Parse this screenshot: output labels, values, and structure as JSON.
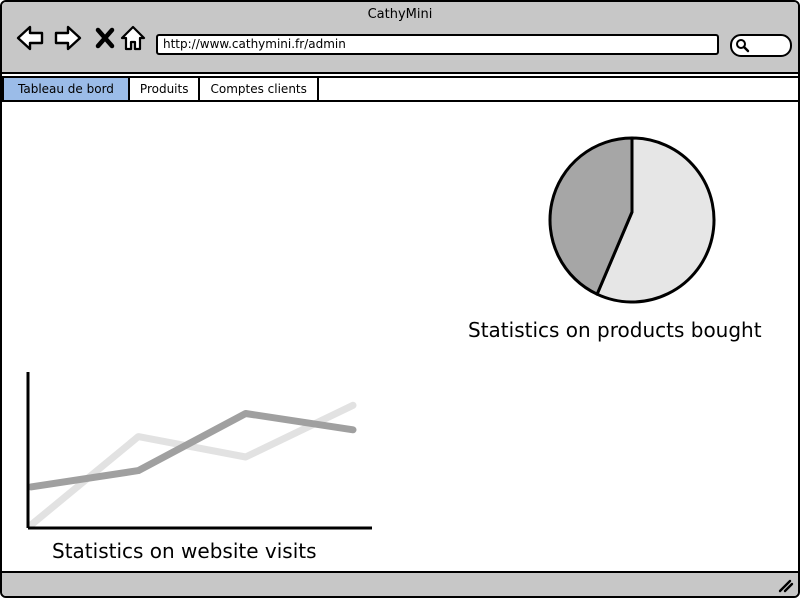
{
  "window": {
    "title": "CathyMini"
  },
  "toolbar": {
    "back_icon": "back-arrow-icon",
    "forward_icon": "forward-arrow-icon",
    "stop_icon": "close-icon",
    "home_icon": "home-icon",
    "url": "http://www.cathymini.fr/admin",
    "search_icon": "search-icon"
  },
  "tabs": [
    {
      "label": "Tableau de bord",
      "active": true
    },
    {
      "label": "Produits",
      "active": false
    },
    {
      "label": "Comptes clients",
      "active": false
    }
  ],
  "colors": {
    "titlebar": "#c7c7c7",
    "active_tab": "#9bbce8",
    "pie_dark": "#a6a6a6",
    "pie_light": "#e6e6e6",
    "line_dark": "#a0a0a0",
    "line_light": "#e2e2e2"
  },
  "chart_data": [
    {
      "type": "pie",
      "title": "Statistics on products bought",
      "slices": [
        {
          "value": 57,
          "color": "#e6e6e6"
        },
        {
          "value": 43,
          "color": "#a6a6a6"
        }
      ]
    },
    {
      "type": "line",
      "title": "Statistics on website visits",
      "x": [
        0,
        1,
        2,
        3
      ],
      "series": [
        {
          "values": [
            0,
            65,
            50,
            88
          ],
          "color": "#e2e2e2"
        },
        {
          "values": [
            28,
            40,
            82,
            70
          ],
          "color": "#a0a0a0"
        }
      ],
      "ylim": [
        0,
        100
      ],
      "grid": false
    }
  ]
}
